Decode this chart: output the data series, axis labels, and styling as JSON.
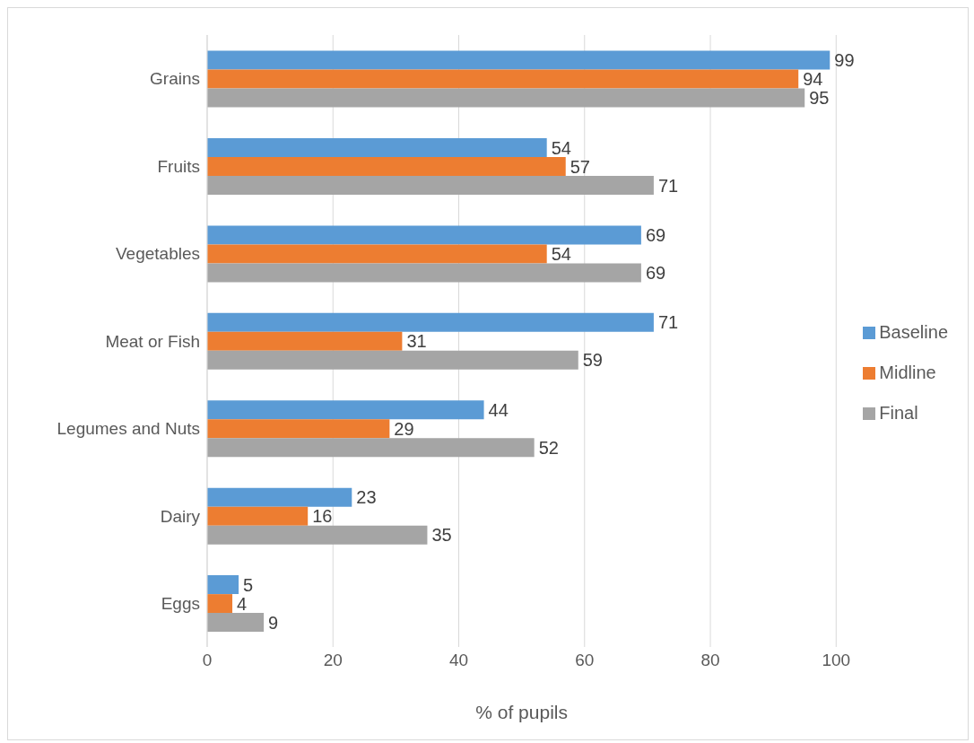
{
  "chart_data": {
    "type": "bar",
    "orientation": "horizontal",
    "xlabel": "% of pupils",
    "categories": [
      "Grains",
      "Fruits",
      "Vegetables",
      "Meat or Fish",
      "Legumes and Nuts",
      "Dairy",
      "Eggs"
    ],
    "series": [
      {
        "name": "Baseline",
        "color": "#5b9bd5",
        "values": [
          99,
          54,
          69,
          71,
          44,
          23,
          5
        ]
      },
      {
        "name": "Midline",
        "color": "#ed7d31",
        "values": [
          94,
          57,
          54,
          31,
          29,
          16,
          4
        ]
      },
      {
        "name": "Final",
        "color": "#a5a5a5",
        "values": [
          95,
          71,
          69,
          59,
          52,
          35,
          9
        ]
      }
    ],
    "xlim": [
      0,
      100
    ],
    "xticks": [
      0,
      20,
      40,
      60,
      80,
      100
    ],
    "grid": "x",
    "legend": "right",
    "data_labels": true
  }
}
